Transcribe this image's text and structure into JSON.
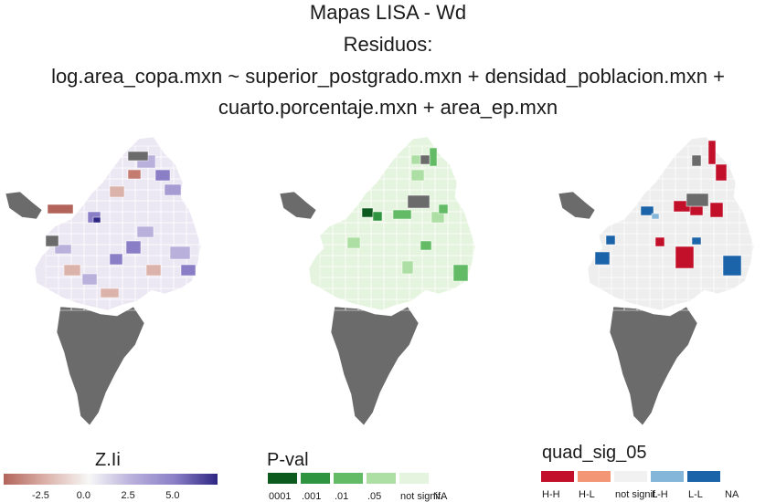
{
  "figure": {
    "title_lines": [
      "Mapas LISA - Wd",
      "Residuos:",
      "log.area_copa.mxn ~ superior_postgrado.mxn + densidad_poblacion.mxn +",
      "cuarto.porcentaje.mxn + area_ep.mxn"
    ]
  },
  "panels": [
    {
      "name": "Z.Ii",
      "kind": "diverging",
      "colors": {
        "low": "#b2645a",
        "mid": "#f7f7f7",
        "high": "#2d2683",
        "na": "#6b6b6b"
      }
    },
    {
      "name": "P-val",
      "kind": "categorical"
    },
    {
      "name": "quad_sig_05",
      "kind": "categorical"
    }
  ],
  "legends": {
    "zii": {
      "title": "Z.Ii",
      "ticks": [
        "-2.5",
        "0.0",
        "2.5",
        "5.0"
      ],
      "tick_values": [
        -2.5,
        0.0,
        2.5,
        5.0
      ],
      "range": [
        -4.6,
        7.4
      ],
      "colors": [
        "#b2645a",
        "#dcb3ab",
        "#f7f7f7",
        "#b9b0dc",
        "#8a7fc6",
        "#2d2683"
      ]
    },
    "pval": {
      "title": "P-val",
      "categories": [
        {
          "label": "0001",
          "color": "#0d5a1e"
        },
        {
          "label": ".001",
          "color": "#2e9440"
        },
        {
          "label": ".01",
          "color": "#63bb65"
        },
        {
          "label": ".05",
          "color": "#addfa4"
        },
        {
          "label": "not signif.",
          "color": "#e5f4de"
        },
        {
          "label": "NA",
          "color": "#ffffff"
        }
      ]
    },
    "quad": {
      "title": "quad_sig_05",
      "categories": [
        {
          "label": "H-H",
          "color": "#c2102a"
        },
        {
          "label": "H-L",
          "color": "#f29676"
        },
        {
          "label": "not signif.",
          "color": "#f1f1f1"
        },
        {
          "label": "L-H",
          "color": "#83b6d9"
        },
        {
          "label": "L-L",
          "color": "#1b64a9"
        },
        {
          "label": "NA",
          "color": "#ffffff"
        }
      ]
    }
  },
  "map_colors": {
    "na": "#6b6b6b",
    "zii_base": "#ece8f3",
    "pval_base": "#e5f4de",
    "quad_base": "#eeeeee",
    "outline": "#ffffff"
  }
}
